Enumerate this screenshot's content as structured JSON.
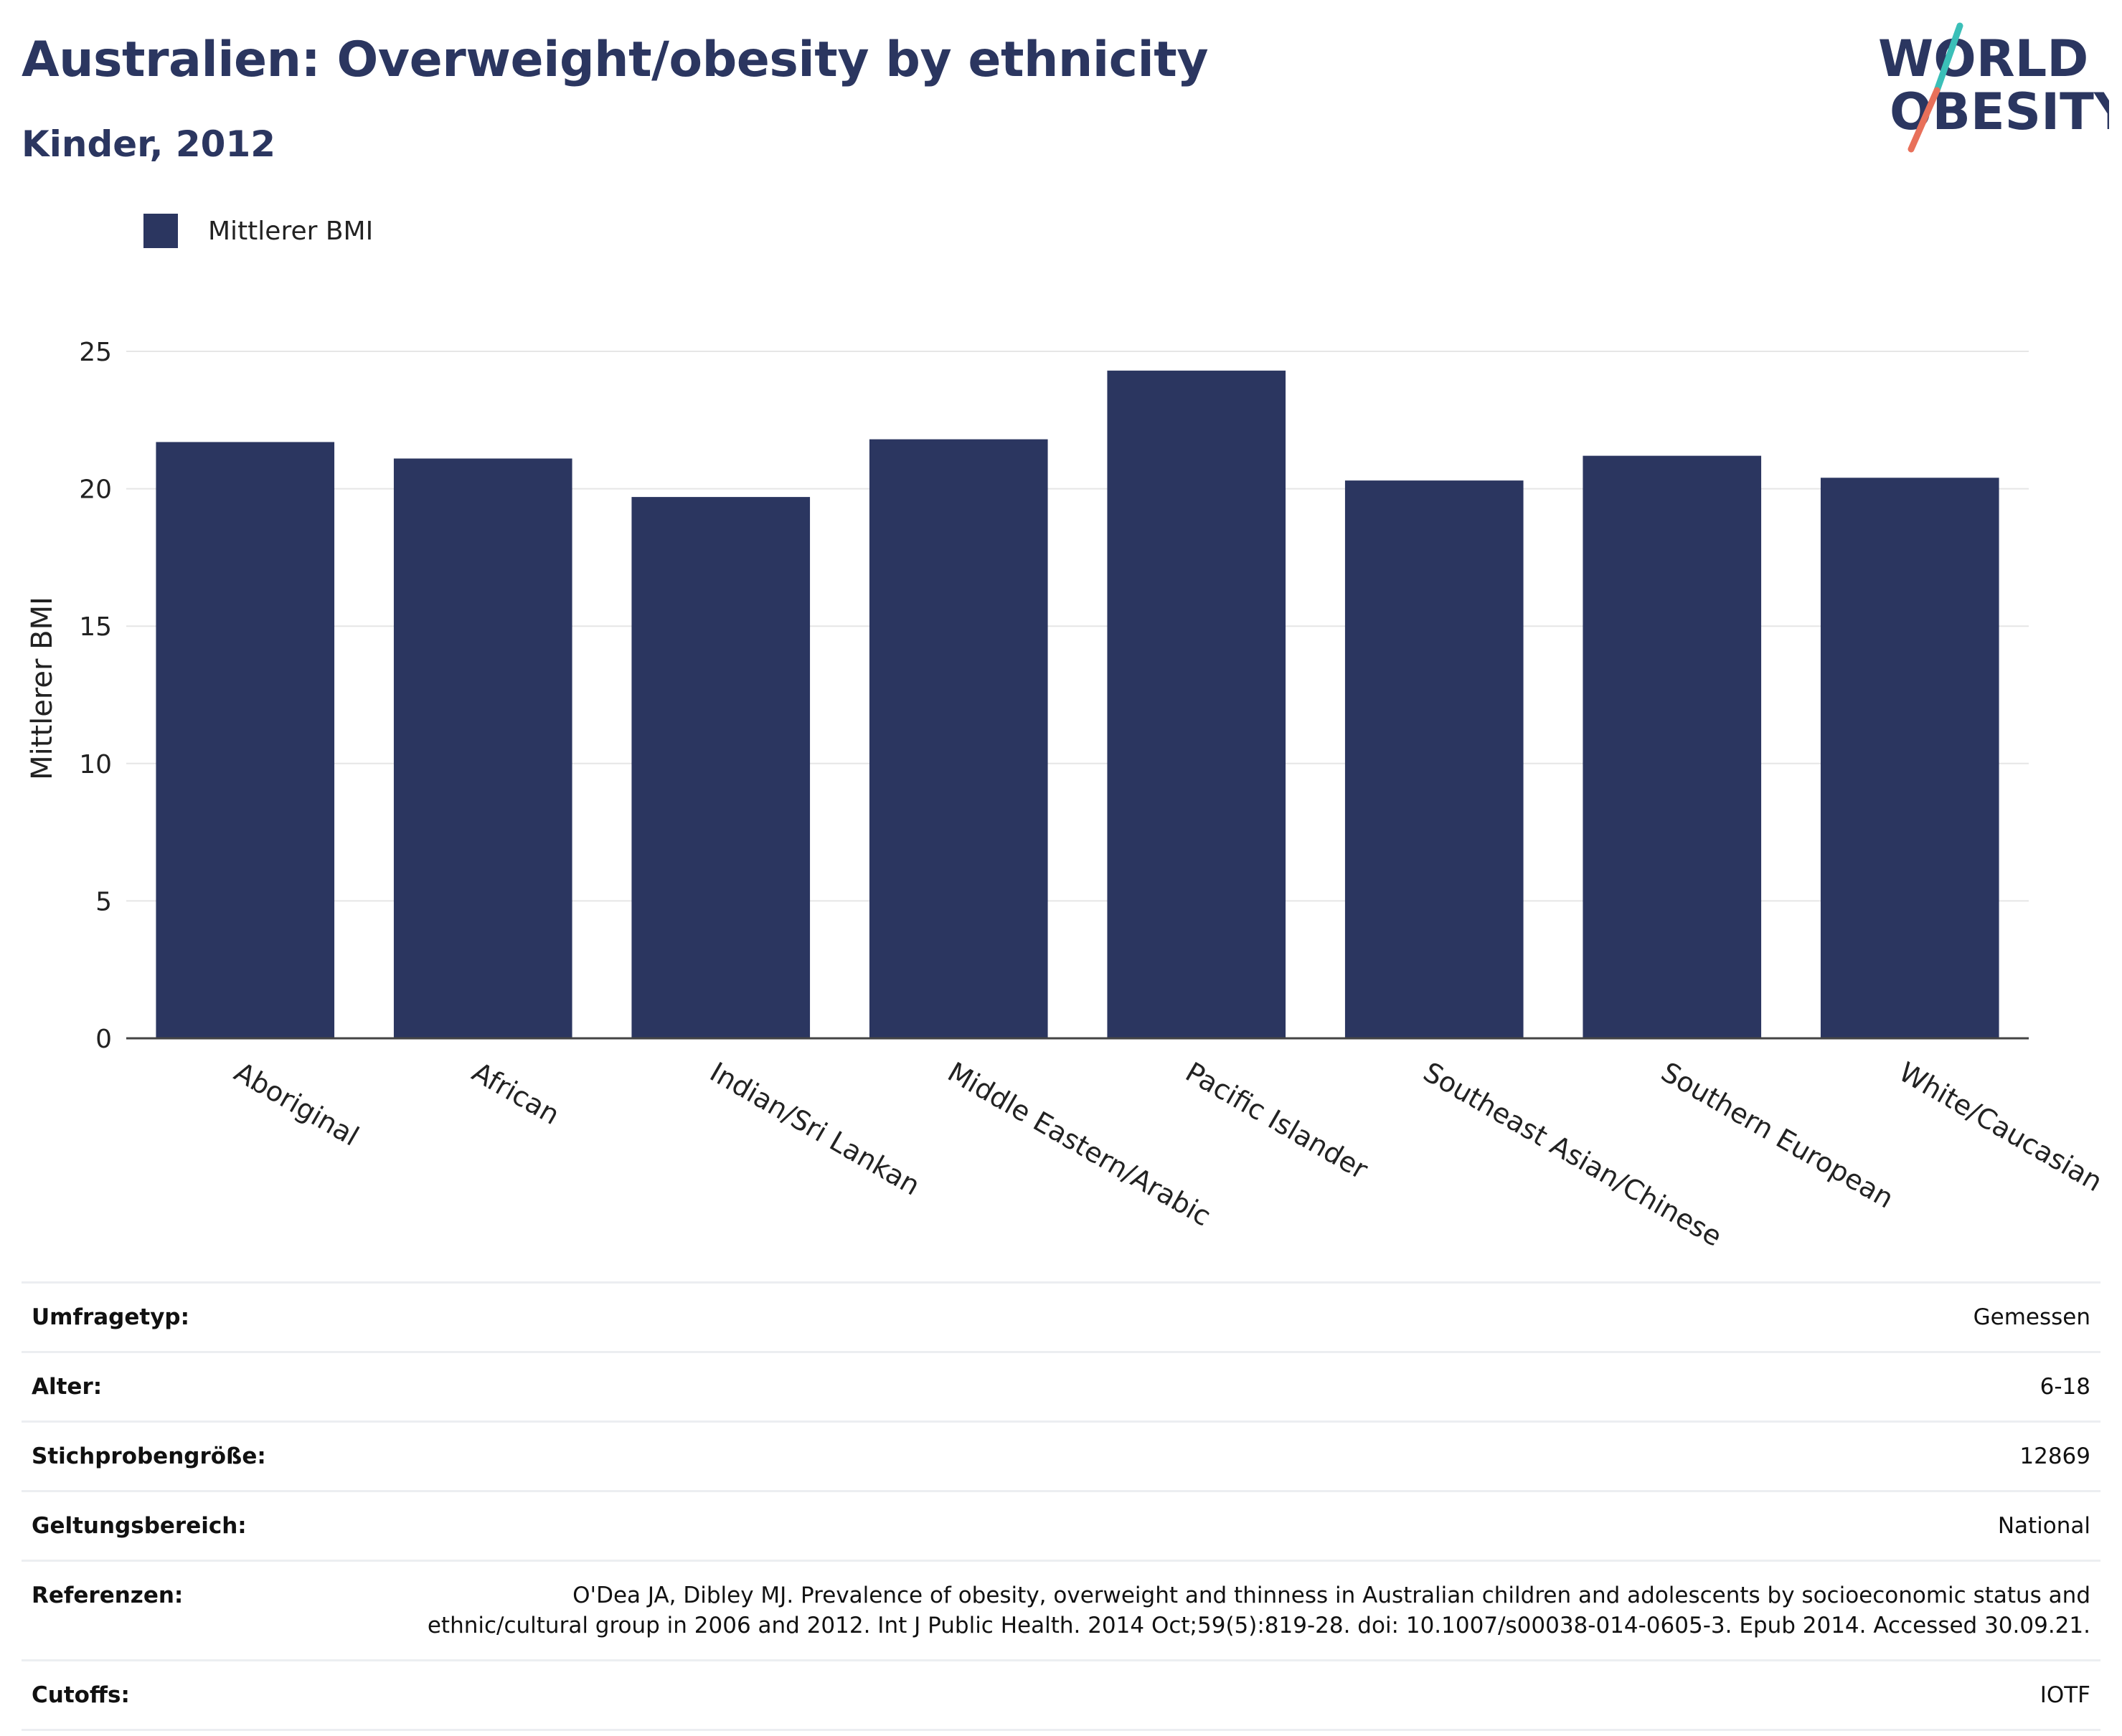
{
  "header": {
    "title": "Australien: Overweight/obesity by ethnicity",
    "subtitle": "Kinder, 2012"
  },
  "logo": {
    "line1": "WORLD",
    "line2": "OBESITY",
    "colors": {
      "text": "#2b3660",
      "slash_top": "#3bbfb8",
      "slash_bottom": "#e8705a"
    }
  },
  "legend": {
    "label": "Mittlerer BMI",
    "color": "#2b3660"
  },
  "chart_data": {
    "type": "bar",
    "categories": [
      "Aboriginal",
      "African",
      "Indian/Sri Lankan",
      "Middle Eastern/Arabic",
      "Pacific Islander",
      "Southeast Asian/Chinese",
      "Southern European",
      "White/Caucasian"
    ],
    "series": [
      {
        "name": "Mittlerer BMI",
        "values": [
          21.7,
          21.1,
          19.7,
          21.8,
          24.3,
          20.3,
          21.2,
          20.4
        ],
        "color": "#2b3660"
      }
    ],
    "ylabel": "Mittlerer BMI",
    "xlabel": "",
    "ylim": [
      0,
      25
    ],
    "yticks": [
      0,
      5,
      10,
      15,
      20,
      25
    ],
    "grid": true,
    "legend_position": "top-left"
  },
  "info": {
    "rows": [
      {
        "key": "Umfragetyp:",
        "value": "Gemessen"
      },
      {
        "key": "Alter:",
        "value": "6-18"
      },
      {
        "key": "Stichprobengröße:",
        "value": "12869"
      },
      {
        "key": "Geltungsbereich:",
        "value": "National"
      },
      {
        "key": "Referenzen:",
        "value": "O'Dea JA, Dibley MJ. Prevalence of obesity, overweight and thinness in Australian children and adolescents by socioeconomic status and ethnic/cultural group in 2006 and 2012. Int J Public Health. 2014 Oct;59(5):819-28. doi: 10.1007/s00038-014-0605-3. Epub 2014. Accessed 30.09.21."
      },
      {
        "key": "Cutoffs:",
        "value": "IOTF"
      }
    ]
  }
}
